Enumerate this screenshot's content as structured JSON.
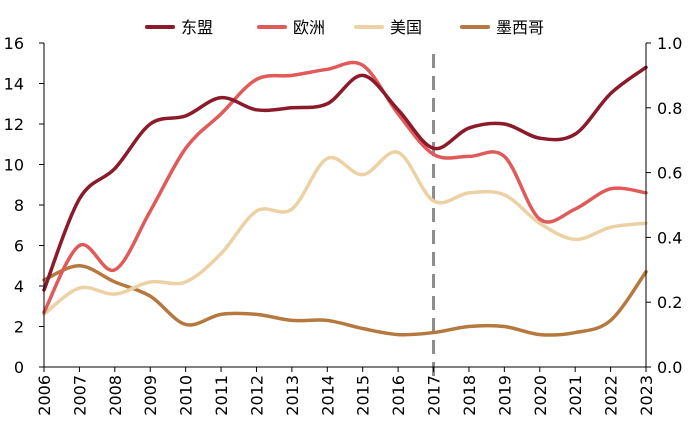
{
  "chart_data": {
    "type": "line",
    "categories": [
      "2006",
      "2007",
      "2008",
      "2009",
      "2010",
      "2011",
      "2012",
      "2013",
      "2014",
      "2015",
      "2016",
      "2017",
      "2018",
      "2019",
      "2020",
      "2021",
      "2022",
      "2023"
    ],
    "series": [
      {
        "name": "东盟",
        "color": "#8b1a2b",
        "axis": "left",
        "values": [
          3.8,
          8.3,
          9.8,
          12.0,
          12.4,
          13.3,
          12.7,
          12.8,
          13.0,
          14.4,
          12.7,
          10.8,
          11.8,
          12.0,
          11.3,
          11.5,
          13.5,
          14.8
        ]
      },
      {
        "name": "欧洲",
        "color": "#e05a5a",
        "axis": "left",
        "values": [
          2.7,
          6.0,
          4.8,
          7.7,
          10.8,
          12.5,
          14.2,
          14.4,
          14.7,
          14.9,
          12.5,
          10.5,
          10.4,
          10.4,
          7.3,
          7.8,
          8.8,
          8.6
        ]
      },
      {
        "name": "美国",
        "color": "#ecd1a4",
        "axis": "left",
        "values": [
          2.6,
          3.9,
          3.6,
          4.2,
          4.2,
          5.6,
          7.7,
          7.8,
          10.3,
          9.5,
          10.6,
          8.2,
          8.6,
          8.5,
          7.1,
          6.3,
          6.9,
          7.1
        ]
      },
      {
        "name": "墨西哥",
        "color": "#b5783e",
        "axis": "left",
        "values": [
          4.3,
          5.0,
          4.2,
          3.5,
          2.1,
          2.6,
          2.6,
          2.3,
          2.3,
          1.9,
          1.6,
          1.7,
          2.0,
          2.0,
          1.6,
          1.7,
          2.3,
          4.7
        ]
      }
    ],
    "ylim": [
      0,
      16
    ],
    "yticks": [
      "0",
      "2",
      "4",
      "6",
      "8",
      "10",
      "12",
      "14",
      "16"
    ],
    "y2lim": [
      0.0,
      1.0
    ],
    "y2ticks": [
      "0.0",
      "0.2",
      "0.4",
      "0.6",
      "0.8",
      "1.0"
    ],
    "marker_year": "2017",
    "legend": {
      "placement": "top-center",
      "labels": [
        "东盟",
        "欧洲",
        "美国",
        "墨西哥"
      ]
    },
    "title": "",
    "xlabel": "",
    "ylabel": "",
    "y2label": "",
    "grid": false
  }
}
